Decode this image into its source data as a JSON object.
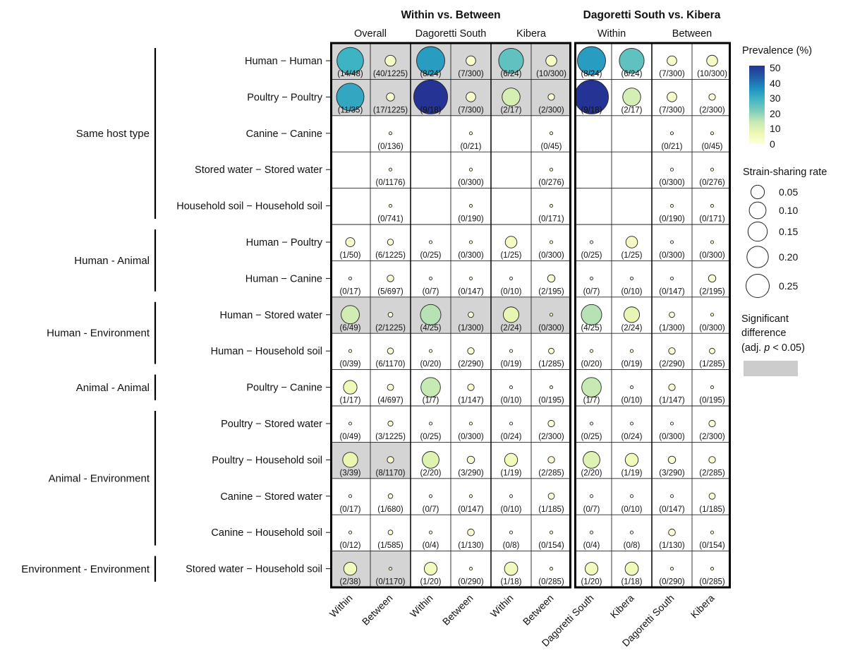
{
  "chart_data": {
    "type": "bubble-matrix",
    "panel_titles": [
      "Within vs. Between",
      "Dagoretti South vs. Kibera"
    ],
    "group_headers": [
      "Overall",
      "Dagoretti South",
      "Kibera",
      "Within",
      "Between"
    ],
    "columns": [
      "Within",
      "Between",
      "Within",
      "Between",
      "Within",
      "Between",
      "Dagoretti South",
      "Kibera",
      "Dagoretti South",
      "Kibera"
    ],
    "categories": [
      {
        "name": "Same host type",
        "rows": [
          0,
          4
        ]
      },
      {
        "name": "Human - Animal",
        "rows": [
          5,
          6
        ]
      },
      {
        "name": "Human - Environment",
        "rows": [
          7,
          8
        ]
      },
      {
        "name": "Animal - Animal",
        "rows": [
          9,
          9
        ]
      },
      {
        "name": "Animal - Environment",
        "rows": [
          10,
          13
        ]
      },
      {
        "name": "Environment - Environment",
        "rows": [
          14,
          14
        ]
      }
    ],
    "rows": [
      {
        "label": "Human − Human",
        "cells": [
          "14/48",
          "40/1225",
          "8/24",
          "7/300",
          "6/24",
          "10/300",
          "8/24",
          "6/24",
          "7/300",
          "10/300"
        ],
        "significant": [
          true,
          true,
          true
        ]
      },
      {
        "label": "Poultry − Poultry",
        "cells": [
          "11/35",
          "17/1225",
          "9/18",
          "7/300",
          "2/17",
          "2/300",
          "9/18",
          "2/17",
          "7/300",
          "2/300"
        ],
        "significant": [
          true,
          true,
          true
        ]
      },
      {
        "label": "Canine − Canine",
        "cells": [
          null,
          "0/136",
          null,
          "0/21",
          null,
          "0/45",
          null,
          null,
          "0/21",
          "0/45"
        ],
        "significant": [
          false,
          false,
          false
        ]
      },
      {
        "label": "Stored water − Stored water",
        "cells": [
          null,
          "0/1176",
          null,
          "0/300",
          null,
          "0/276",
          null,
          null,
          "0/300",
          "0/276"
        ],
        "significant": [
          false,
          false,
          false
        ]
      },
      {
        "label": "Household soil − Household soil",
        "cells": [
          null,
          "0/741",
          null,
          "0/190",
          null,
          "0/171",
          null,
          null,
          "0/190",
          "0/171"
        ],
        "significant": [
          false,
          false,
          false
        ]
      },
      {
        "label": "Human − Poultry",
        "cells": [
          "1/50",
          "6/1225",
          "0/25",
          "0/300",
          "1/25",
          "0/300",
          "0/25",
          "1/25",
          "0/300",
          "0/300"
        ],
        "significant": [
          false,
          false,
          false
        ]
      },
      {
        "label": "Human − Canine",
        "cells": [
          "0/17",
          "5/697",
          "0/7",
          "0/147",
          "0/10",
          "2/195",
          "0/7",
          "0/10",
          "0/147",
          "2/195"
        ],
        "significant": [
          false,
          false,
          false
        ]
      },
      {
        "label": "Human − Stored water",
        "cells": [
          "6/49",
          "2/1225",
          "4/25",
          "1/300",
          "2/24",
          "0/300",
          "4/25",
          "2/24",
          "1/300",
          "0/300"
        ],
        "significant": [
          true,
          true,
          true
        ]
      },
      {
        "label": "Human − Household soil",
        "cells": [
          "0/39",
          "6/1170",
          "0/20",
          "2/290",
          "0/19",
          "1/285",
          "0/20",
          "0/19",
          "2/290",
          "1/285"
        ],
        "significant": [
          false,
          false,
          false
        ]
      },
      {
        "label": "Poultry − Canine",
        "cells": [
          "1/17",
          "4/697",
          "1/7",
          "1/147",
          "0/10",
          "0/195",
          "1/7",
          "0/10",
          "1/147",
          "0/195"
        ],
        "significant": [
          false,
          false,
          false
        ]
      },
      {
        "label": "Poultry − Stored water",
        "cells": [
          "0/49",
          "3/1225",
          "0/25",
          "0/300",
          "0/24",
          "2/300",
          "0/25",
          "0/24",
          "0/300",
          "2/300"
        ],
        "significant": [
          false,
          false,
          false
        ]
      },
      {
        "label": "Poultry − Household soil",
        "cells": [
          "3/39",
          "8/1170",
          "2/20",
          "3/290",
          "1/19",
          "2/285",
          "2/20",
          "1/19",
          "3/290",
          "2/285"
        ],
        "significant": [
          true,
          false,
          false
        ]
      },
      {
        "label": "Canine − Stored water",
        "cells": [
          "0/17",
          "1/680",
          "0/7",
          "0/147",
          "0/10",
          "1/185",
          "0/7",
          "0/10",
          "0/147",
          "1/185"
        ],
        "significant": [
          false,
          false,
          false
        ]
      },
      {
        "label": "Canine − Household soil",
        "cells": [
          "0/12",
          "1/585",
          "0/4",
          "1/130",
          "0/8",
          "0/154",
          "0/4",
          "0/8",
          "1/130",
          "0/154"
        ],
        "significant": [
          false,
          false,
          false
        ]
      },
      {
        "label": "Stored water − Household soil",
        "cells": [
          "2/38",
          "0/1170",
          "1/20",
          "0/290",
          "1/18",
          "0/285",
          "1/20",
          "1/18",
          "0/290",
          "0/285"
        ],
        "significant": [
          true,
          false,
          false
        ]
      }
    ],
    "legend": {
      "color_title": "Prevalence (%)",
      "color_ticks": [
        "50",
        "40",
        "30",
        "20",
        "10",
        "0"
      ],
      "color_range": [
        0,
        50
      ],
      "size_title": "Strain-sharing rate",
      "size_ticks": [
        "0.05",
        "0.10",
        "0.15",
        "0.20",
        "0.25"
      ],
      "sig_title_lines": [
        "Significant",
        "difference",
        "(adj. ",
        "p",
        " < 0.05)"
      ],
      "sig_color": "#cccccc"
    },
    "colors": {
      "scale": [
        "#ffffd9",
        "#edf8b1",
        "#c7e9b4",
        "#7fcdbb",
        "#41b6c4",
        "#1d91c0",
        "#225ea8",
        "#253494"
      ],
      "significant_fill": "#d4d4d4"
    }
  }
}
